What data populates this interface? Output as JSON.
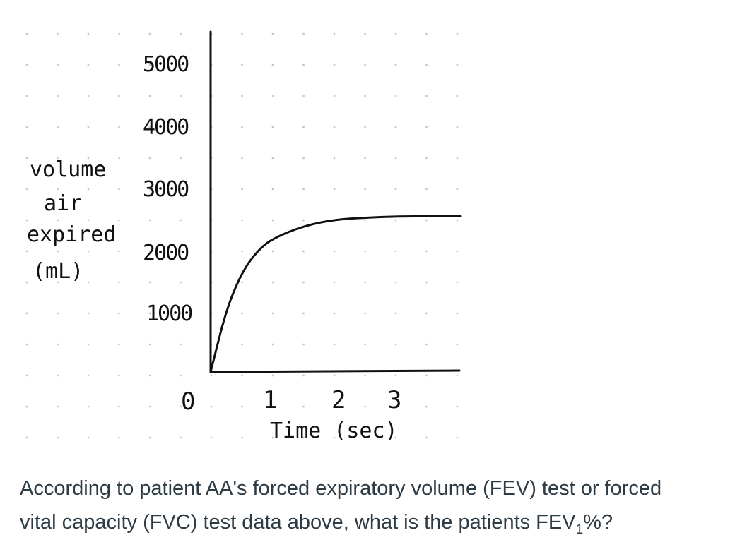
{
  "chart_data": {
    "type": "line",
    "xlabel": "Time (sec)",
    "ylabel_lines": [
      "volume",
      "air",
      "expired",
      "(mL)"
    ],
    "x_ticks": [
      "0",
      "1",
      "2",
      "3"
    ],
    "y_ticks": [
      "5000",
      "4000",
      "3000",
      "2000",
      "1000"
    ],
    "xlim": [
      0,
      4
    ],
    "ylim": [
      0,
      5000
    ],
    "grid": "dotted",
    "series": [
      {
        "x": [
          0,
          0.25,
          0.5,
          0.75,
          1.0,
          1.5,
          2.0,
          2.5,
          3.0,
          3.5,
          4.0
        ],
        "values": [
          0,
          1000,
          1600,
          1950,
          2150,
          2350,
          2450,
          2480,
          2500,
          2500,
          2500
        ]
      }
    ]
  },
  "question": {
    "line1": "According to patient AA's forced expiratory volume (FEV) test or forced",
    "line2_start": "vital capacity (FVC) test data above, what is the patients FEV",
    "line2_sub": "1",
    "line2_end": "%?"
  }
}
